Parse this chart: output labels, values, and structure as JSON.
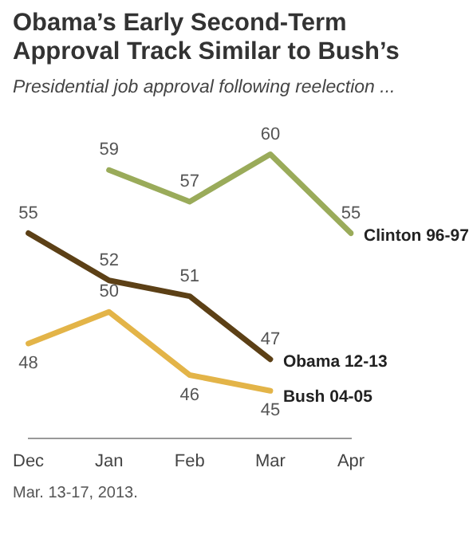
{
  "chart_data": {
    "type": "line",
    "title": "Obama’s Early Second-Term Approval Track Similar to Bush’s",
    "subtitle": "Presidential job approval following reelection ...",
    "annotations": [
      "Mar. 13-17, 2013."
    ],
    "categories": [
      "Dec",
      "Jan",
      "Feb",
      "Mar",
      "Apr"
    ],
    "series": [
      {
        "name": "Clinton 96-97",
        "color": "#9aab5a",
        "values": [
          null,
          59,
          57,
          60,
          55
        ]
      },
      {
        "name": "Obama 12-13",
        "color": "#5c4016",
        "values": [
          55,
          52,
          51,
          47,
          null
        ]
      },
      {
        "name": "Bush 04-05",
        "color": "#e3b448",
        "values": [
          48,
          50,
          46,
          45,
          null
        ]
      }
    ],
    "data_labels": true,
    "legend": false,
    "grid": false,
    "marker": "none"
  }
}
